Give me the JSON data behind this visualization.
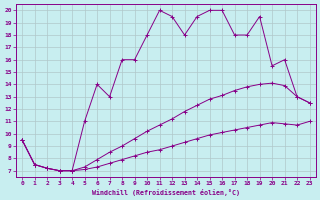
{
  "xlabel": "Windchill (Refroidissement éolien,°C)",
  "background_color": "#c8eef0",
  "grid_color": "#b0c8ca",
  "line_color": "#880088",
  "xlim": [
    -0.5,
    23.5
  ],
  "ylim": [
    6.5,
    20.5
  ],
  "xticks": [
    0,
    1,
    2,
    3,
    4,
    5,
    6,
    7,
    8,
    9,
    10,
    11,
    12,
    13,
    14,
    15,
    16,
    17,
    18,
    19,
    20,
    21,
    22,
    23
  ],
  "yticks": [
    7,
    8,
    9,
    10,
    11,
    12,
    13,
    14,
    15,
    16,
    17,
    18,
    19,
    20
  ],
  "line1_x": [
    0,
    1,
    2,
    3,
    4,
    5,
    6,
    7,
    8,
    9,
    10,
    11,
    12,
    13,
    14,
    15,
    16,
    17,
    18,
    19,
    20,
    21,
    22,
    23
  ],
  "line1_y": [
    9.5,
    7.5,
    7.2,
    7.0,
    7.0,
    7.1,
    7.3,
    7.6,
    7.9,
    8.2,
    8.5,
    8.7,
    9.0,
    9.3,
    9.6,
    9.9,
    10.1,
    10.3,
    10.5,
    10.7,
    10.9,
    10.8,
    10.7,
    11.0
  ],
  "line2_x": [
    0,
    1,
    2,
    3,
    4,
    5,
    6,
    7,
    8,
    9,
    10,
    11,
    12,
    13,
    14,
    15,
    16,
    17,
    18,
    19,
    20,
    21,
    22,
    23
  ],
  "line2_y": [
    9.5,
    7.5,
    7.2,
    7.0,
    7.0,
    7.3,
    7.9,
    8.5,
    9.0,
    9.6,
    10.2,
    10.7,
    11.2,
    11.8,
    12.3,
    12.8,
    13.1,
    13.5,
    13.8,
    14.0,
    14.1,
    13.9,
    13.0,
    12.5
  ],
  "line3_x": [
    0,
    1,
    2,
    3,
    4,
    5,
    6,
    7,
    8,
    9,
    10,
    11,
    12,
    13,
    14,
    15,
    16,
    17,
    18,
    19,
    20,
    21,
    22,
    23
  ],
  "line3_y": [
    9.5,
    7.5,
    7.2,
    7.0,
    7.0,
    11.0,
    14.0,
    13.0,
    16.0,
    16.0,
    18.0,
    20.0,
    19.5,
    18.0,
    19.5,
    20.0,
    20.0,
    18.0,
    18.0,
    19.5,
    15.5,
    16.0,
    13.0,
    12.5
  ]
}
